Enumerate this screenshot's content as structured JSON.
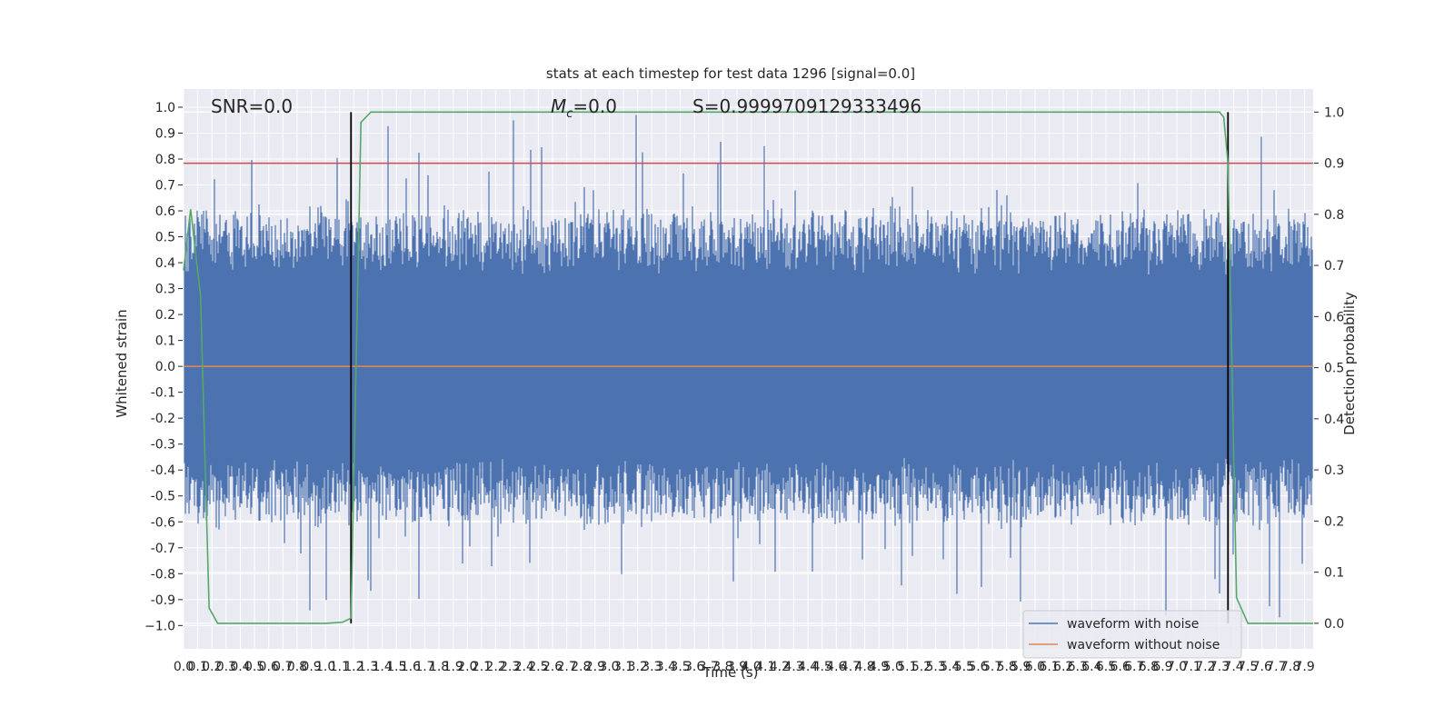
{
  "chart_data": {
    "type": "line",
    "title": "stats at each timestep for test data 1296 [signal=0.0]",
    "xlabel": "Time (s)",
    "ylabel_left": "Whitened strain",
    "ylabel_right": "Detection probability",
    "xlim": [
      0.0,
      7.96
    ],
    "ylim_left": [
      -1.09,
      1.07
    ],
    "ylim_right": [
      -0.05,
      1.045
    ],
    "x_ticks": [
      "0.0",
      "0.1",
      "0.2",
      "0.3",
      "0.4",
      "0.5",
      "0.6",
      "0.7",
      "0.8",
      "0.9",
      "1.0",
      "1.1",
      "1.2",
      "1.3",
      "1.4",
      "1.5",
      "1.6",
      "1.7",
      "1.8",
      "1.9",
      "2.0",
      "2.1",
      "2.2",
      "2.3",
      "2.4",
      "2.5",
      "2.6",
      "2.7",
      "2.8",
      "2.9",
      "3.0",
      "3.1",
      "3.2",
      "3.3",
      "3.4",
      "3.5",
      "3.6",
      "3.7",
      "3.8",
      "3.9",
      "4.0",
      "4.1",
      "4.2",
      "4.3",
      "4.4",
      "4.5",
      "4.6",
      "4.7",
      "4.8",
      "4.9",
      "5.0",
      "5.1",
      "5.2",
      "5.3",
      "5.4",
      "5.5",
      "5.6",
      "5.7",
      "5.8",
      "5.9",
      "6.0",
      "6.1",
      "6.2",
      "6.3",
      "6.4",
      "6.5",
      "6.6",
      "6.7",
      "6.8",
      "6.9",
      "7.0",
      "7.1",
      "7.2",
      "7.3",
      "7.4",
      "7.5",
      "7.6",
      "7.7",
      "7.8",
      "7.9"
    ],
    "y_ticks_left": [
      "1.0",
      "0.9",
      "0.8",
      "0.7",
      "0.6",
      "0.5",
      "0.4",
      "0.3",
      "0.2",
      "0.1",
      "0.0",
      "-0.1",
      "-0.2",
      "-0.3",
      "-0.4",
      "-0.5",
      "-0.6",
      "-0.7",
      "-0.8",
      "-0.9",
      "−1.0"
    ],
    "y_ticks_right": [
      "1.0",
      "0.9",
      "0.8",
      "0.7",
      "0.6",
      "0.5",
      "0.4",
      "0.3",
      "0.2",
      "0.1",
      "0.0"
    ],
    "annotations": {
      "snr": "SNR=0.0",
      "mc": "=0.0",
      "mc_symbol": "M",
      "mc_sub": "c",
      "s": "S=0.9999709129333496"
    },
    "threshold_right": 0.9,
    "event_lines_x": [
      1.18,
      7.36
    ],
    "noise_envelope": {
      "typical_abs": [
        0.35,
        0.55
      ],
      "peak_max": 0.97,
      "peak_min": -0.98
    },
    "series": [
      {
        "name": "waveform with noise",
        "axis": "left",
        "kind": "whitened noise trace, high-frequency"
      },
      {
        "name": "waveform without noise",
        "axis": "left",
        "x": [
          0.0,
          7.96
        ],
        "y": [
          0.0,
          0.0
        ]
      },
      {
        "axis": "right",
        "x": [
          0.0,
          0.05,
          0.12,
          0.18,
          0.24,
          1.0,
          1.12,
          1.18,
          1.25,
          1.32,
          2.0,
          7.3,
          7.33,
          7.36,
          7.42,
          7.5,
          7.96
        ],
        "y": [
          0.69,
          0.81,
          0.64,
          0.03,
          0.0,
          0.0,
          0.002,
          0.01,
          0.98,
          1.0,
          1.0,
          1.0,
          0.99,
          0.9,
          0.05,
          0.0,
          0.0
        ]
      }
    ],
    "legend": {
      "placement": "lower right",
      "entries": [
        "waveform with noise",
        "waveform without noise"
      ]
    },
    "colors": {
      "noise": "#4c72b0",
      "clean": "#dd8452",
      "prob": "#55a868",
      "threshold": "#c44e52",
      "event": "#000000",
      "plot_bg": "#eaeaf2",
      "grid": "#ffffff"
    },
    "grid": true
  }
}
